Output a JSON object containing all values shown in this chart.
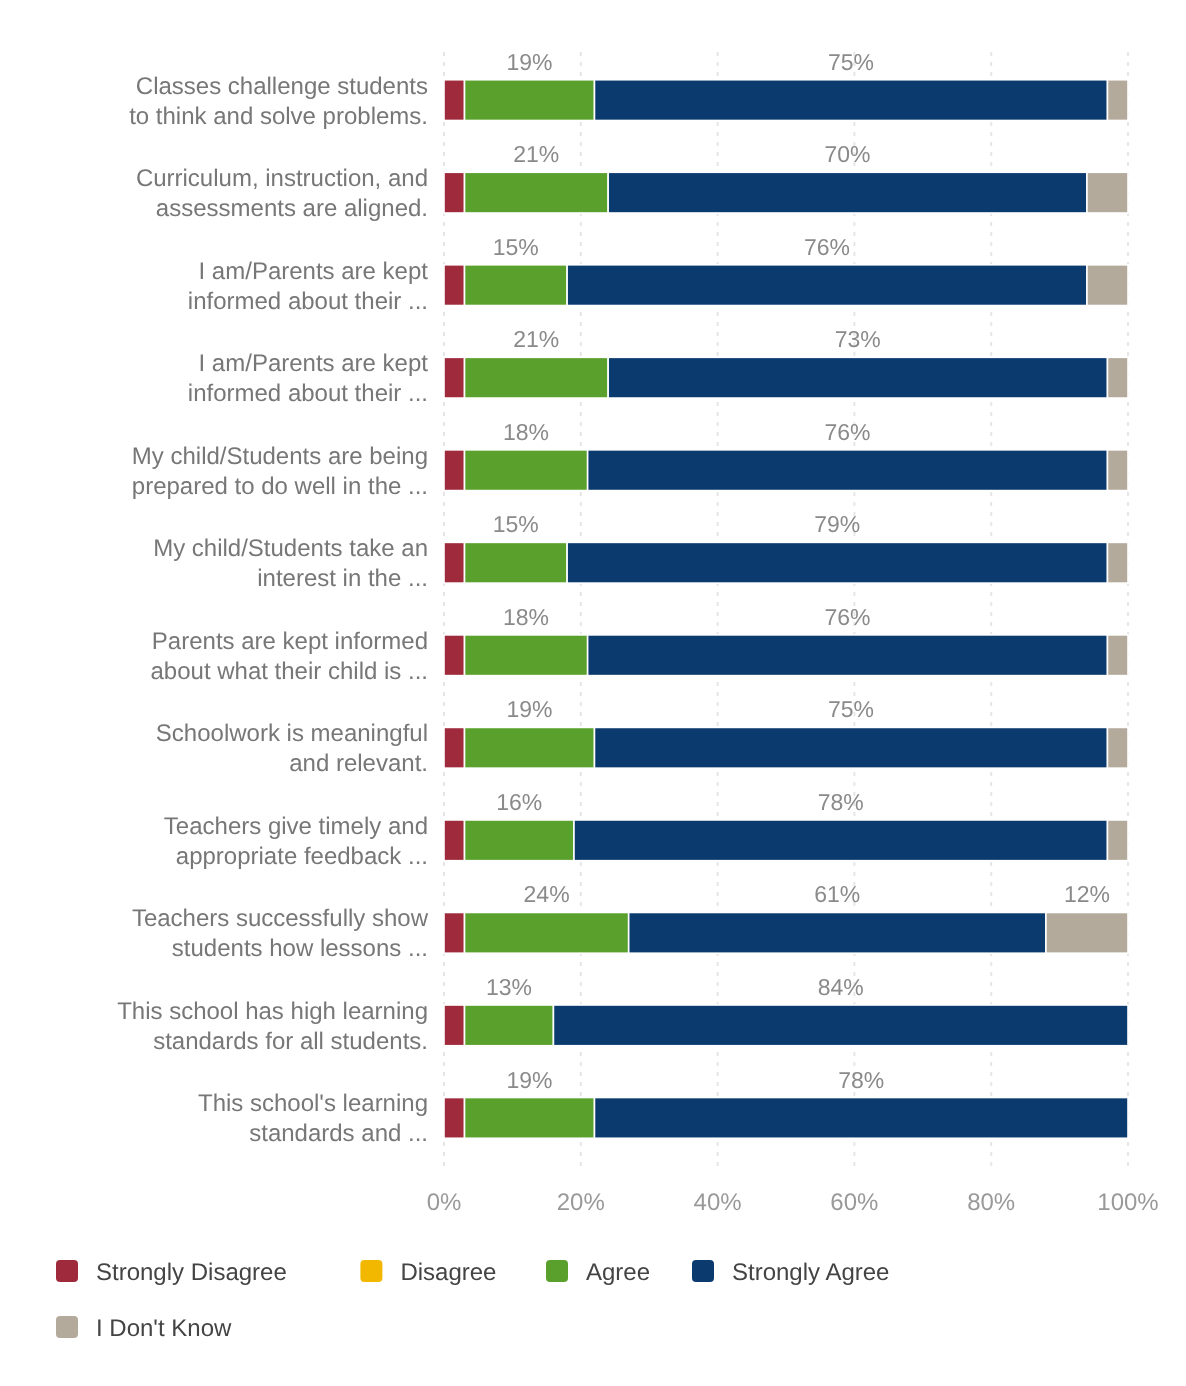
{
  "chart_data": {
    "type": "bar",
    "orientation": "horizontal",
    "stacked": true,
    "categories": [
      "Classes challenge students\nto think and solve problems.",
      "Curriculum, instruction, and\nassessments are aligned.",
      "I am/Parents are kept\ninformed about their ...",
      "I am/Parents are kept\ninformed about their ...",
      "My child/Students are being\nprepared to do well in the ...",
      "My child/Students take an\ninterest in the ...",
      "Parents are kept informed\nabout what their child is ...",
      "Schoolwork is meaningful\nand relevant.",
      "Teachers give timely and\nappropriate feedback ...",
      "Teachers successfully show\nstudents how lessons ...",
      "This school has high learning\nstandards for all students.",
      "This school's learning\nstandards and ..."
    ],
    "series": [
      {
        "name": "Strongly Disagree",
        "color": "#9e2a3c",
        "values": [
          3,
          3,
          3,
          3,
          3,
          3,
          3,
          3,
          3,
          3,
          3,
          3
        ]
      },
      {
        "name": "Disagree",
        "color": "#f2b800",
        "values": [
          0,
          0,
          0,
          0,
          0,
          0,
          0,
          0,
          0,
          0,
          0,
          0
        ]
      },
      {
        "name": "Agree",
        "color": "#5aa02c",
        "values": [
          19,
          21,
          15,
          21,
          18,
          15,
          18,
          19,
          16,
          24,
          13,
          19
        ],
        "value_labels": [
          "19%",
          "21%",
          "15%",
          "21%",
          "18%",
          "15%",
          "18%",
          "19%",
          "16%",
          "24%",
          "13%",
          "19%"
        ]
      },
      {
        "name": "Strongly Agree",
        "color": "#0b3a6e",
        "values": [
          75,
          70,
          76,
          73,
          76,
          79,
          76,
          75,
          78,
          61,
          84,
          78
        ],
        "value_labels": [
          "75%",
          "70%",
          "76%",
          "73%",
          "76%",
          "79%",
          "76%",
          "75%",
          "78%",
          "61%",
          "84%",
          "78%"
        ]
      },
      {
        "name": "I Don't Know",
        "color": "#b4aa9c",
        "values": [
          3,
          6,
          6,
          3,
          3,
          3,
          3,
          3,
          3,
          12,
          0,
          0
        ],
        "value_labels": [
          null,
          null,
          null,
          null,
          null,
          null,
          null,
          null,
          null,
          "12%",
          null,
          null
        ]
      }
    ],
    "xlim": [
      0,
      100
    ],
    "xticks": [
      {
        "value": 0,
        "label": "0%"
      },
      {
        "value": 20,
        "label": "20%"
      },
      {
        "value": 40,
        "label": "40%"
      },
      {
        "value": 60,
        "label": "60%"
      },
      {
        "value": 80,
        "label": "80%"
      },
      {
        "value": 100,
        "label": "100%"
      }
    ],
    "grid": "x",
    "legend": "bottom"
  }
}
